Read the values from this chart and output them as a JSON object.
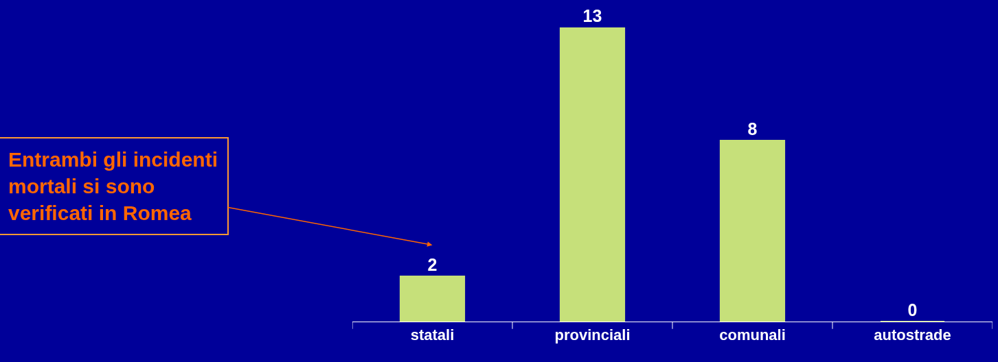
{
  "chart_data": {
    "type": "bar",
    "categories": [
      "statali",
      "provinciali",
      "comunali",
      "autostrade"
    ],
    "values": [
      2,
      13,
      8,
      0
    ],
    "color": "#c6e07a",
    "ylim": [
      0,
      13
    ],
    "data_labels": true,
    "grid": false,
    "legend": false,
    "tick_labels": "x",
    "annotations": [
      "Entrambi gli incidenti\nmortali si sono\nverificati in Romea"
    ]
  }
}
